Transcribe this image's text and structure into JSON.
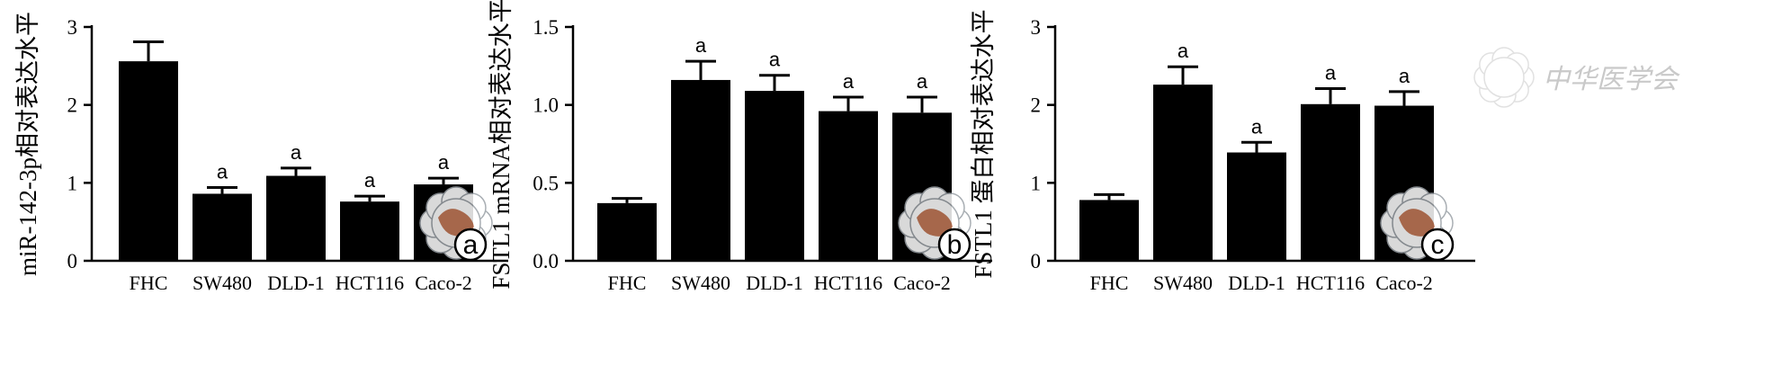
{
  "chart_data": [
    {
      "type": "bar",
      "panel_label": "a",
      "categories": [
        "FHC",
        "SW480",
        "DLD-1",
        "HCT116",
        "Caco-2"
      ],
      "values": [
        2.56,
        0.86,
        1.09,
        0.76,
        0.98
      ],
      "errors": [
        0.25,
        0.08,
        0.1,
        0.07,
        0.08
      ],
      "significance": [
        "",
        "a",
        "a",
        "a",
        "a"
      ],
      "ylabel": "miR-142-3p相对表达水平",
      "ylim": [
        0,
        3
      ],
      "yticks": [
        0,
        1,
        2,
        3
      ],
      "ytick_labels": [
        "0",
        "1",
        "2",
        "3"
      ]
    },
    {
      "type": "bar",
      "panel_label": "b",
      "categories": [
        "FHC",
        "SW480",
        "DLD-1",
        "HCT116",
        "Caco-2"
      ],
      "values": [
        0.37,
        1.16,
        1.09,
        0.96,
        0.95
      ],
      "errors": [
        0.03,
        0.12,
        0.1,
        0.09,
        0.1
      ],
      "significance": [
        "",
        "a",
        "a",
        "a",
        "a"
      ],
      "ylabel": "FSTL1 mRNA相对表达水平",
      "ylim": [
        0,
        1.5
      ],
      "yticks": [
        0,
        0.5,
        1.0,
        1.5
      ],
      "ytick_labels": [
        "0.0",
        "0.5",
        "1.0",
        "1.5"
      ]
    },
    {
      "type": "bar",
      "panel_label": "c",
      "categories": [
        "FHC",
        "SW480",
        "DLD-1",
        "HCT116",
        "Caco-2"
      ],
      "values": [
        0.78,
        2.26,
        1.39,
        2.01,
        1.99
      ],
      "errors": [
        0.07,
        0.23,
        0.13,
        0.2,
        0.18
      ],
      "significance": [
        "",
        "a",
        "a",
        "a",
        "a"
      ],
      "ylabel": "FSTL1 蛋白相对表达水平",
      "ylim": [
        0,
        3
      ],
      "yticks": [
        0,
        1,
        2,
        3
      ],
      "ytick_labels": [
        "0",
        "1",
        "2",
        "3"
      ]
    }
  ],
  "watermark": {
    "text": "中华医学会",
    "seal_color": "#9aa0a6",
    "map_color": "#b5572f"
  }
}
